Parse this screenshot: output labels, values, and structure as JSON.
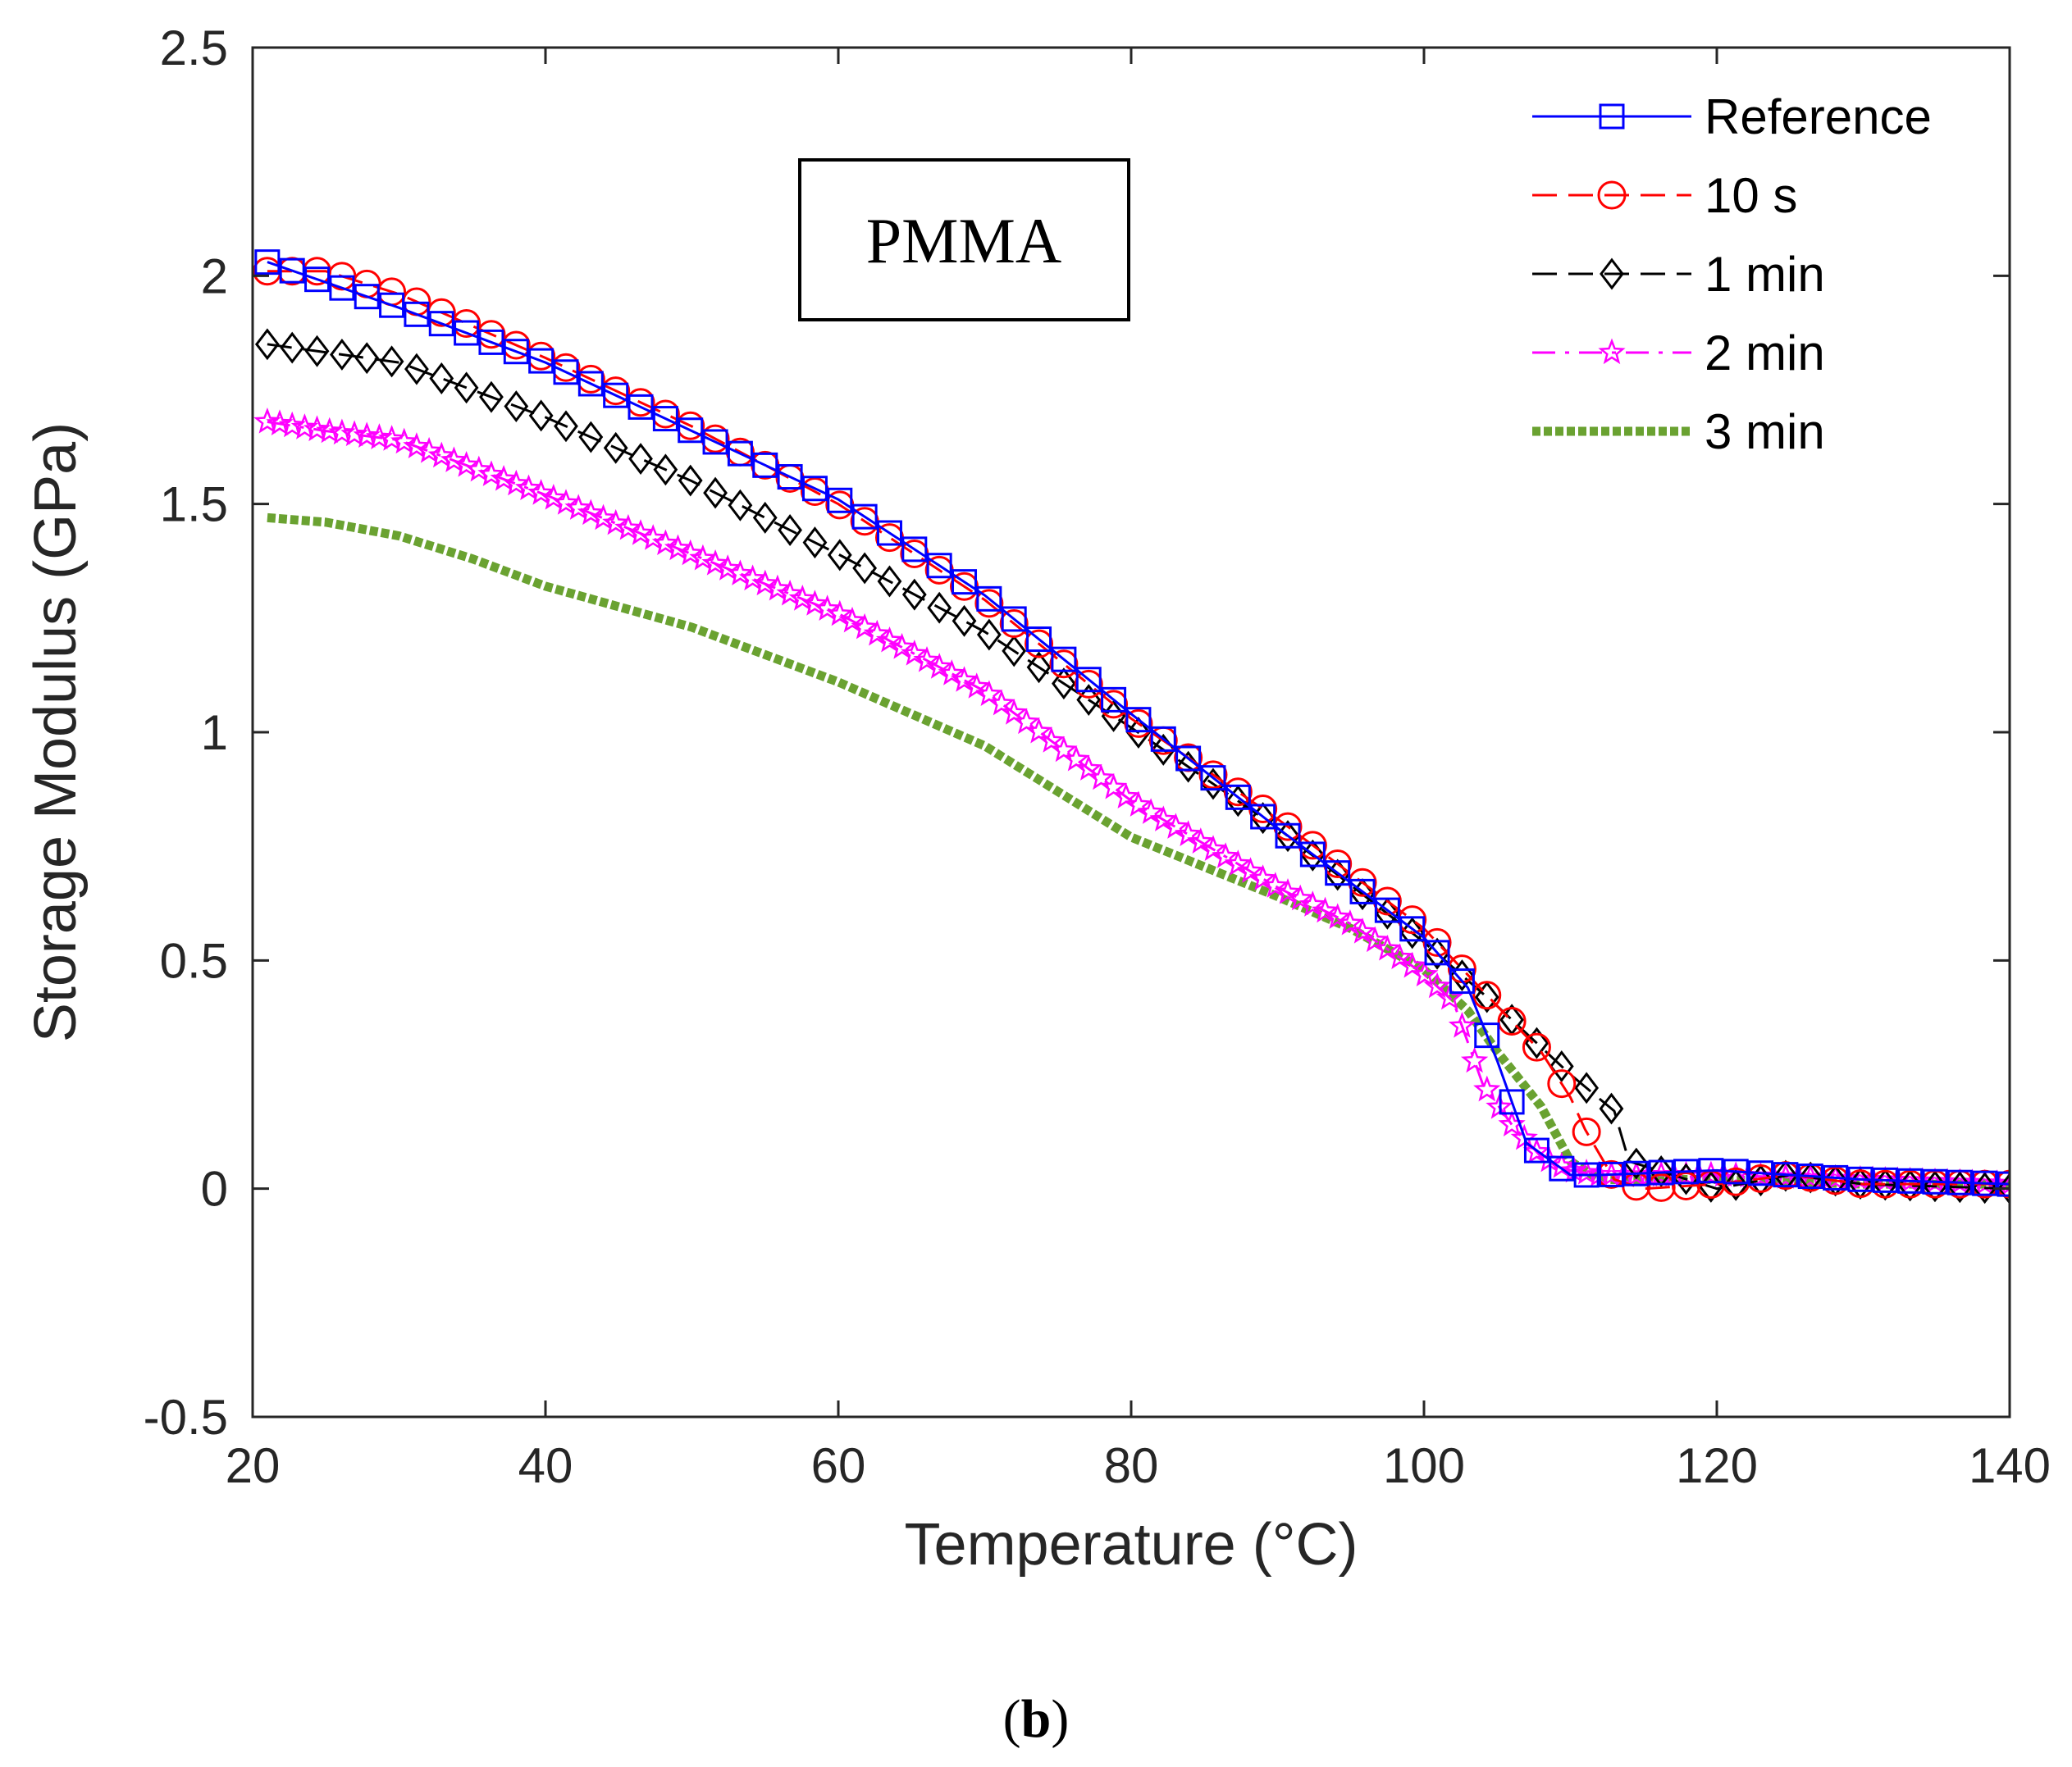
{
  "chart_data": {
    "type": "line",
    "xlabel": "Temperature (°C)",
    "ylabel": "Storage Modulus (GPa)",
    "xlim": [
      20,
      140
    ],
    "ylim": [
      -0.5,
      2.5
    ],
    "xticks": [
      20,
      40,
      60,
      80,
      100,
      120,
      140
    ],
    "xtick_labels": [
      "20",
      "40",
      "60",
      "80",
      "100",
      "120",
      "140"
    ],
    "yticks": [
      -0.5,
      0,
      0.5,
      1,
      1.5,
      2,
      2.5
    ],
    "ytick_labels": [
      "-0.5",
      "0",
      "0.5",
      "1",
      "1.5",
      "2",
      "2.5"
    ],
    "grid": false,
    "legend_position": "top-right",
    "annotation": "PMMA",
    "caption": {
      "open": "(",
      "letter": "b",
      "close": ")"
    },
    "series": [
      {
        "name": "Reference",
        "color": "#0000ff",
        "marker": "square",
        "dash": "solid",
        "step": 1.7,
        "x": [
          21,
          30,
          40,
          50,
          60,
          70,
          80,
          90,
          95,
          100,
          103,
          105,
          107,
          110,
          112,
          120,
          130,
          140
        ],
        "y": [
          2.03,
          1.93,
          1.81,
          1.66,
          1.51,
          1.3,
          1.04,
          0.79,
          0.67,
          0.55,
          0.44,
          0.28,
          0.1,
          0.03,
          0.03,
          0.04,
          0.02,
          0.01
        ]
      },
      {
        "name": "10 s",
        "color": "#ff0000",
        "marker": "circle",
        "dash": "long",
        "step": 1.7,
        "x": [
          21,
          25,
          30,
          40,
          50,
          60,
          70,
          80,
          90,
          100,
          105,
          108,
          110,
          111,
          113,
          115,
          120,
          125,
          130,
          140
        ],
        "y": [
          2.01,
          2.01,
          1.96,
          1.82,
          1.67,
          1.5,
          1.29,
          1.03,
          0.81,
          0.57,
          0.4,
          0.3,
          0.2,
          0.13,
          0.02,
          0.0,
          0.01,
          0.03,
          0.01,
          0.01
        ]
      },
      {
        "name": "1 min",
        "color": "#000000",
        "marker": "diamond",
        "dash": "long",
        "step": 1.7,
        "x": [
          21,
          30,
          40,
          50,
          60,
          70,
          80,
          90,
          100,
          105,
          110,
          113,
          114,
          117,
          120,
          125,
          130,
          140
        ],
        "y": [
          1.85,
          1.81,
          1.69,
          1.55,
          1.39,
          1.22,
          1.01,
          0.79,
          0.54,
          0.4,
          0.25,
          0.17,
          0.06,
          0.03,
          0.0,
          0.03,
          0.01,
          0.0
        ]
      },
      {
        "name": "2 min",
        "color": "#ff00ff",
        "marker": "star",
        "dash": "dashdot",
        "step": 0.85,
        "x": [
          21,
          25,
          30,
          40,
          50,
          60,
          70,
          80,
          90,
          95,
          100,
          102,
          104,
          106,
          108,
          110,
          112,
          120,
          130,
          140
        ],
        "y": [
          1.68,
          1.66,
          1.64,
          1.52,
          1.39,
          1.26,
          1.09,
          0.85,
          0.66,
          0.58,
          0.47,
          0.41,
          0.23,
          0.14,
          0.07,
          0.04,
          0.03,
          0.03,
          0.02,
          0.01
        ]
      },
      {
        "name": "3 min",
        "color": "#6aa231",
        "marker": "none",
        "dash": "dotted",
        "step": 1,
        "x": [
          21,
          25,
          30,
          35,
          40,
          50,
          60,
          70,
          80,
          90,
          95,
          100,
          103,
          105,
          108,
          110,
          112,
          120,
          130,
          140
        ],
        "y": [
          1.47,
          1.46,
          1.43,
          1.38,
          1.32,
          1.23,
          1.11,
          0.97,
          0.77,
          0.64,
          0.57,
          0.48,
          0.39,
          0.3,
          0.18,
          0.06,
          0.02,
          0.02,
          0.01,
          0.01
        ]
      }
    ]
  }
}
